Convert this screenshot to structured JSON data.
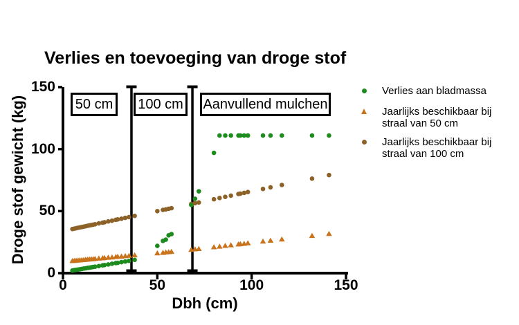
{
  "title": "Verlies en toevoeging van droge stof",
  "legend": {
    "items": [
      {
        "label": "Verlies aan bladmassa",
        "marker": "circle",
        "color": "#1e8b1e"
      },
      {
        "label": "Jaarlijks beschikbaar bij straal van 50 cm",
        "marker": "triangle",
        "color": "#c9731d"
      },
      {
        "label": "Jaarlijks beschikbaar bij straal van 100 cm",
        "marker": "circle",
        "color": "#8d6228"
      }
    ]
  },
  "chart_data": {
    "type": "scatter",
    "title": "Verlies en toevoeging van droge stof",
    "xlabel": "Dbh (cm)",
    "ylabel": "Droge stof gewicht (kg)",
    "xlim": [
      0,
      150
    ],
    "ylim": [
      0,
      150
    ],
    "x_ticks": [
      0,
      50,
      100,
      150
    ],
    "y_ticks": [
      0,
      50,
      100,
      150
    ],
    "grid": false,
    "legend_position": "right",
    "axis_color": "#000000",
    "x": [
      5,
      6,
      7,
      8,
      9,
      10,
      11,
      12,
      13,
      14,
      15,
      16,
      17,
      19,
      21,
      22,
      24,
      26,
      28,
      29,
      31,
      33,
      35,
      38,
      50,
      53,
      54.5,
      56,
      57.5,
      68,
      70,
      72,
      80,
      83,
      86,
      89,
      93,
      94,
      96,
      98,
      106,
      110,
      116,
      132,
      141
    ],
    "series": [
      {
        "name": "Verlies aan bladmassa",
        "marker": "circle",
        "color": "#1e8b1e",
        "values": [
          2.1,
          2.4,
          2.6,
          2.9,
          3.1,
          3.4,
          3.7,
          3.9,
          4.2,
          4.4,
          4.7,
          5.0,
          5.2,
          5.7,
          6.3,
          6.5,
          7.0,
          7.6,
          8.1,
          8.3,
          8.9,
          9.4,
          9.9,
          10.7,
          22,
          26,
          27,
          30.5,
          31.5,
          55,
          60,
          66,
          97,
          111,
          111,
          111,
          111,
          111,
          111,
          111,
          111,
          111,
          111,
          111,
          111
        ]
      },
      {
        "name": "Jaarlijks beschikbaar bij straal van 50 cm",
        "marker": "triangle",
        "color": "#c9731d",
        "values": [
          9.7,
          9.8,
          10.0,
          10.1,
          10.3,
          10.4,
          10.5,
          10.7,
          10.8,
          11.0,
          11.1,
          11.2,
          11.4,
          11.7,
          11.9,
          12.1,
          12.4,
          12.6,
          12.9,
          13.1,
          13.3,
          13.6,
          13.9,
          14.3,
          15.9,
          16.3,
          16.6,
          16.8,
          17.1,
          18.7,
          19.1,
          19.4,
          20.8,
          21.3,
          21.9,
          22.4,
          23.1,
          23.3,
          23.6,
          24.0,
          25.4,
          26.1,
          27.1,
          29.9,
          31.5
        ]
      },
      {
        "name": "Jaarlijks beschikbaar bij straal van 100 cm",
        "marker": "circle",
        "color": "#8d6228",
        "values": [
          35.6,
          35.9,
          36.2,
          36.6,
          36.9,
          37.2,
          37.5,
          37.8,
          38.2,
          38.5,
          38.8,
          39.1,
          39.4,
          40.1,
          40.7,
          41.0,
          41.7,
          42.3,
          43.0,
          43.3,
          43.9,
          44.6,
          45.2,
          46.2,
          50.0,
          51.0,
          51.4,
          51.9,
          52.4,
          55.8,
          56.4,
          57.0,
          59.6,
          60.6,
          61.5,
          62.5,
          63.8,
          64.1,
          64.7,
          65.4,
          67.9,
          69.2,
          71.1,
          76.2,
          79.1
        ]
      }
    ],
    "annotations": {
      "vlines_x": [
        36.3,
        68.6
      ],
      "vline_style": "capped-vertical-bar",
      "zone_labels": [
        "50 cm",
        "100 cm",
        "Aanvullend mulchen"
      ]
    }
  }
}
